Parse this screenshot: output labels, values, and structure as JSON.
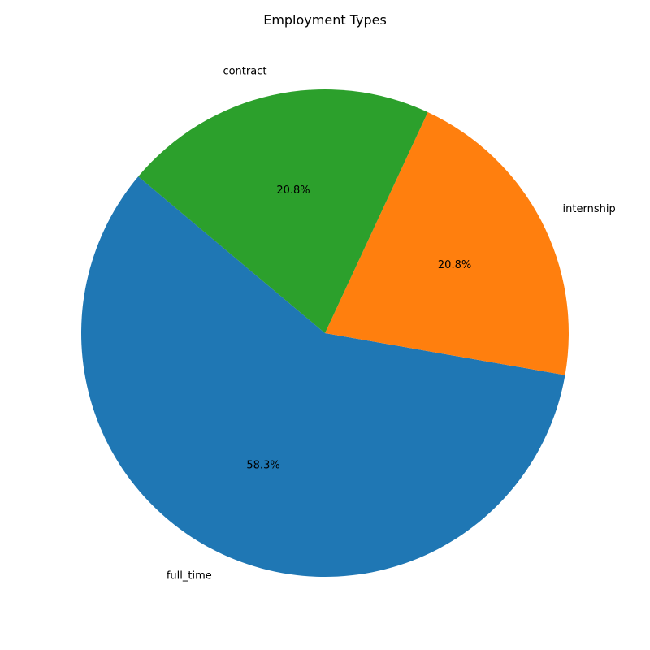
{
  "chart_data": {
    "type": "pie",
    "title": "Employment Types",
    "slices": [
      {
        "label": "full_time",
        "value": 58.3,
        "pct_text": "58.3%",
        "color": "#1f77b4"
      },
      {
        "label": "internship",
        "value": 20.8,
        "pct_text": "20.8%",
        "color": "#ff7f0e"
      },
      {
        "label": "contract",
        "value": 20.8,
        "pct_text": "20.8%",
        "color": "#2ca02c"
      }
    ],
    "start_angle_deg": 140,
    "direction": "counterclockwise",
    "legend": "none"
  }
}
